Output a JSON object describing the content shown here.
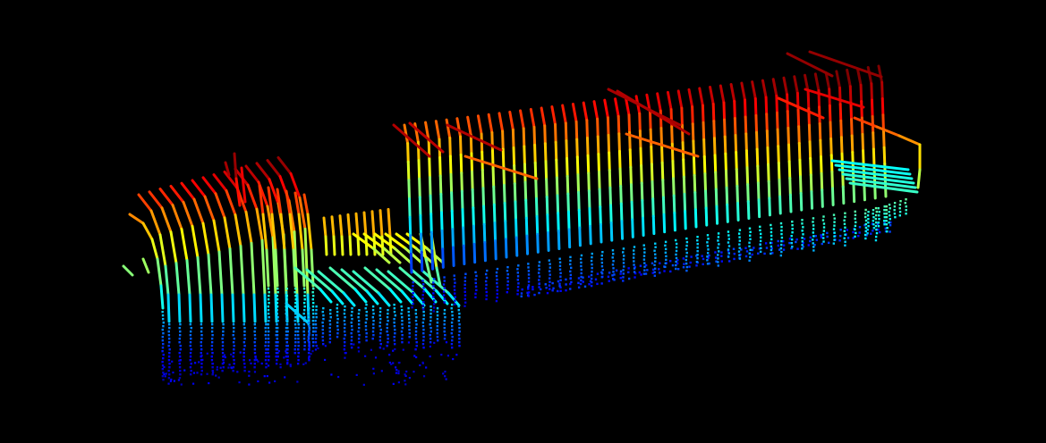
{
  "scene": {
    "type": "lidar-point-cloud",
    "colormap": "jet",
    "color_channel": "height",
    "background_color": "#000000",
    "colormap_stops": [
      "#00008f",
      "#0000ff",
      "#0080ff",
      "#00ffff",
      "#80ff80",
      "#ffff00",
      "#ff8000",
      "#ff0000",
      "#800000"
    ],
    "objects": [
      "left-structure-vertical-strips",
      "low-middle-framework",
      "long-elevated-container-structure",
      "right-end-frame",
      "ground-returns"
    ]
  }
}
